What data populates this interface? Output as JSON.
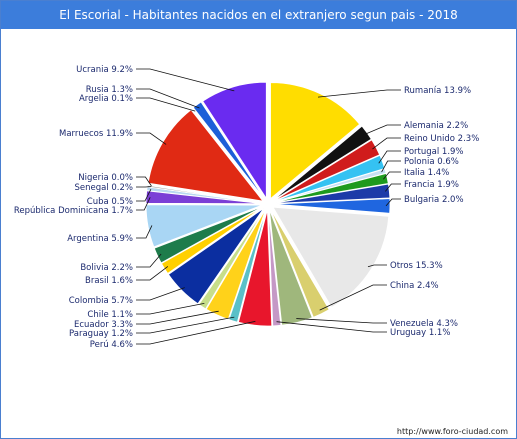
{
  "header": {
    "title": "El Escorial - Habitantes nacidos en el extranjero segun pais - 2018"
  },
  "footer": {
    "url": "http://www.foro-ciudad.com"
  },
  "chart_data": {
    "type": "pie",
    "title": "El Escorial - Habitantes nacidos en el extranjero segun pais - 2018",
    "start_angle_deg": 0,
    "slices": [
      {
        "label": "Rumanía",
        "pct_text": "13.9%",
        "value": 13.9,
        "color": "#ffdd00"
      },
      {
        "label": "Alemania",
        "pct_text": "2.2%",
        "value": 2.2,
        "color": "#111111"
      },
      {
        "label": "Reino Unido",
        "pct_text": "2.3%",
        "value": 2.3,
        "color": "#d01c1c"
      },
      {
        "label": "Portugal",
        "pct_text": "1.9%",
        "value": 1.9,
        "color": "#35c2f2"
      },
      {
        "label": "Polonia",
        "pct_text": "0.6%",
        "value": 0.6,
        "color": "#c8e0f5"
      },
      {
        "label": "Italia",
        "pct_text": "1.4%",
        "value": 1.4,
        "color": "#1e9a1e"
      },
      {
        "label": "Francia",
        "pct_text": "1.9%",
        "value": 1.9,
        "color": "#1d3aa8"
      },
      {
        "label": "Bulgaria",
        "pct_text": "2.0%",
        "value": 2.0,
        "color": "#1f66e0"
      },
      {
        "label": "Otros",
        "pct_text": "15.3%",
        "value": 15.3,
        "color": "#e8e8e8"
      },
      {
        "label": "China",
        "pct_text": "2.4%",
        "value": 2.4,
        "color": "#d9cf6e"
      },
      {
        "label": "Venezuela",
        "pct_text": "4.3%",
        "value": 4.3,
        "color": "#9fb77c"
      },
      {
        "label": "Uruguay",
        "pct_text": "1.1%",
        "value": 1.1,
        "color": "#c598c6"
      },
      {
        "label": "Perú",
        "pct_text": "4.6%",
        "value": 4.6,
        "color": "#e8162c"
      },
      {
        "label": "Paraguay",
        "pct_text": "1.2%",
        "value": 1.2,
        "color": "#5bc0c8"
      },
      {
        "label": "Ecuador",
        "pct_text": "3.3%",
        "value": 3.3,
        "color": "#ffd21a"
      },
      {
        "label": "Chile",
        "pct_text": "1.1%",
        "value": 1.1,
        "color": "#c7de8a"
      },
      {
        "label": "Colombia",
        "pct_text": "5.7%",
        "value": 5.7,
        "color": "#0b2ea0"
      },
      {
        "label": "Brasil",
        "pct_text": "1.6%",
        "value": 1.6,
        "color": "#ffd000"
      },
      {
        "label": "Bolivia",
        "pct_text": "2.2%",
        "value": 2.2,
        "color": "#1e7c4b"
      },
      {
        "label": "Argentina",
        "pct_text": "5.9%",
        "value": 5.9,
        "color": "#a9d6f4"
      },
      {
        "label": "República Dominicana",
        "pct_text": "1.7%",
        "value": 1.7,
        "color": "#7b3fd6"
      },
      {
        "label": "Cuba",
        "pct_text": "0.5%",
        "value": 0.5,
        "color": "#b8d8f0"
      },
      {
        "label": "Senegal",
        "pct_text": "0.2%",
        "value": 0.2,
        "color": "#a0a0a0"
      },
      {
        "label": "Nigeria",
        "pct_text": "0.0%",
        "value": 0.0,
        "color": "#556677"
      },
      {
        "label": "Marruecos",
        "pct_text": "11.9%",
        "value": 11.9,
        "color": "#e02a14"
      },
      {
        "label": "Argelia",
        "pct_text": "0.1%",
        "value": 0.1,
        "color": "#7a7a7a"
      },
      {
        "label": "Rusia",
        "pct_text": "1.3%",
        "value": 1.3,
        "color": "#1d5fd8"
      },
      {
        "label": "Ucrania",
        "pct_text": "9.2%",
        "value": 9.2,
        "color": "#6a2bf0"
      }
    ]
  }
}
